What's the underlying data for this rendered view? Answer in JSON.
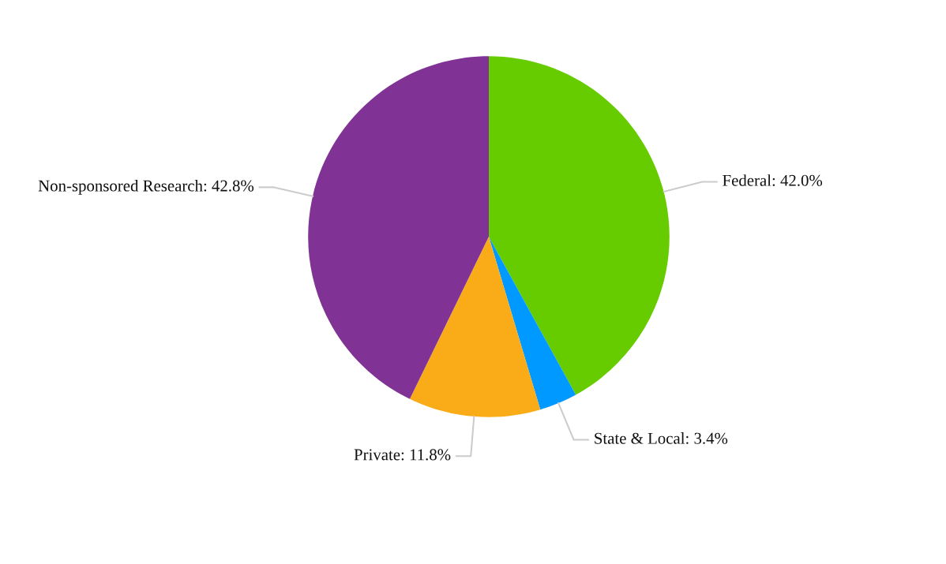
{
  "chart_data": {
    "type": "pie",
    "categories": [
      "Federal",
      "State & Local",
      "Private",
      "Non-sponsored Research"
    ],
    "values": [
      42.0,
      3.4,
      11.8,
      42.8
    ],
    "value_labels": [
      "42.0%",
      "3.4%",
      "11.8%",
      "42.8%"
    ],
    "colors": [
      "#66cc00",
      "#0099ff",
      "#faac18",
      "#803394"
    ]
  }
}
